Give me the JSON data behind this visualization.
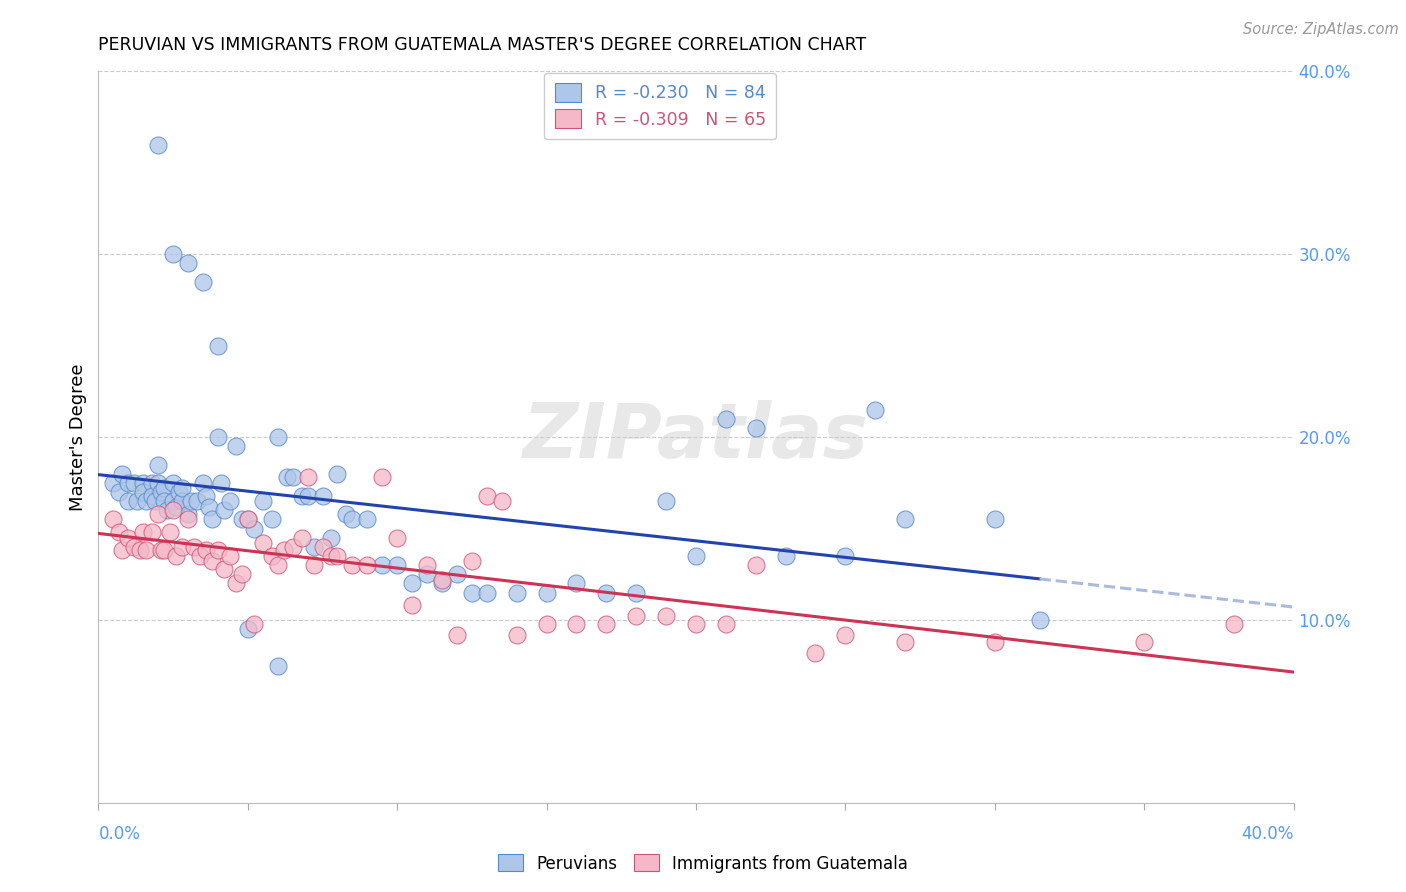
{
  "title": "PERUVIAN VS IMMIGRANTS FROM GUATEMALA MASTER'S DEGREE CORRELATION CHART",
  "source": "Source: ZipAtlas.com",
  "ylabel": "Master's Degree",
  "legend_label1": "Peruvians",
  "legend_label2": "Immigrants from Guatemala",
  "r1": -0.23,
  "n1": 84,
  "r2": -0.309,
  "n2": 65,
  "xlim": [
    0.0,
    0.4
  ],
  "ylim": [
    0.0,
    0.4
  ],
  "color_blue": "#aec6e8",
  "color_pink": "#f4b8c8",
  "color_blue_edge": "#5588cc",
  "color_pink_edge": "#cc5577",
  "line_blue": "#2244aa",
  "line_pink": "#cc3355",
  "line_dash": "#aabbdd",
  "grid_color": "#cccccc",
  "background": "#ffffff",
  "blue_x": [
    0.005,
    0.007,
    0.008,
    0.01,
    0.01,
    0.012,
    0.013,
    0.015,
    0.015,
    0.016,
    0.018,
    0.018,
    0.019,
    0.02,
    0.02,
    0.021,
    0.022,
    0.022,
    0.023,
    0.025,
    0.025,
    0.026,
    0.027,
    0.028,
    0.028,
    0.03,
    0.031,
    0.033,
    0.035,
    0.036,
    0.037,
    0.038,
    0.04,
    0.041,
    0.042,
    0.044,
    0.046,
    0.048,
    0.05,
    0.052,
    0.055,
    0.058,
    0.06,
    0.063,
    0.065,
    0.068,
    0.07,
    0.072,
    0.075,
    0.078,
    0.08,
    0.083,
    0.085,
    0.09,
    0.095,
    0.1,
    0.105,
    0.11,
    0.115,
    0.12,
    0.125,
    0.13,
    0.14,
    0.15,
    0.16,
    0.17,
    0.18,
    0.19,
    0.2,
    0.21,
    0.22,
    0.23,
    0.25,
    0.26,
    0.27,
    0.3,
    0.315,
    0.02,
    0.025,
    0.03,
    0.035,
    0.04,
    0.05,
    0.06
  ],
  "blue_y": [
    0.175,
    0.17,
    0.18,
    0.175,
    0.165,
    0.175,
    0.165,
    0.175,
    0.17,
    0.165,
    0.175,
    0.168,
    0.165,
    0.175,
    0.185,
    0.17,
    0.172,
    0.165,
    0.16,
    0.175,
    0.165,
    0.162,
    0.17,
    0.165,
    0.172,
    0.158,
    0.165,
    0.165,
    0.175,
    0.168,
    0.162,
    0.155,
    0.2,
    0.175,
    0.16,
    0.165,
    0.195,
    0.155,
    0.155,
    0.15,
    0.165,
    0.155,
    0.2,
    0.178,
    0.178,
    0.168,
    0.168,
    0.14,
    0.168,
    0.145,
    0.18,
    0.158,
    0.155,
    0.155,
    0.13,
    0.13,
    0.12,
    0.125,
    0.12,
    0.125,
    0.115,
    0.115,
    0.115,
    0.115,
    0.12,
    0.115,
    0.115,
    0.165,
    0.135,
    0.21,
    0.205,
    0.135,
    0.135,
    0.215,
    0.155,
    0.155,
    0.1,
    0.36,
    0.3,
    0.295,
    0.285,
    0.25,
    0.095,
    0.075
  ],
  "pink_x": [
    0.005,
    0.007,
    0.008,
    0.01,
    0.012,
    0.014,
    0.015,
    0.016,
    0.018,
    0.02,
    0.021,
    0.022,
    0.024,
    0.025,
    0.026,
    0.028,
    0.03,
    0.032,
    0.034,
    0.036,
    0.038,
    0.04,
    0.042,
    0.044,
    0.046,
    0.048,
    0.05,
    0.052,
    0.055,
    0.058,
    0.06,
    0.062,
    0.065,
    0.068,
    0.07,
    0.072,
    0.075,
    0.078,
    0.08,
    0.085,
    0.09,
    0.095,
    0.1,
    0.105,
    0.11,
    0.115,
    0.12,
    0.125,
    0.13,
    0.135,
    0.14,
    0.15,
    0.16,
    0.17,
    0.18,
    0.19,
    0.2,
    0.21,
    0.22,
    0.24,
    0.25,
    0.27,
    0.3,
    0.35,
    0.38
  ],
  "pink_y": [
    0.155,
    0.148,
    0.138,
    0.145,
    0.14,
    0.138,
    0.148,
    0.138,
    0.148,
    0.158,
    0.138,
    0.138,
    0.148,
    0.16,
    0.135,
    0.14,
    0.155,
    0.14,
    0.135,
    0.138,
    0.132,
    0.138,
    0.128,
    0.135,
    0.12,
    0.125,
    0.155,
    0.098,
    0.142,
    0.135,
    0.13,
    0.138,
    0.14,
    0.145,
    0.178,
    0.13,
    0.14,
    0.135,
    0.135,
    0.13,
    0.13,
    0.178,
    0.145,
    0.108,
    0.13,
    0.122,
    0.092,
    0.132,
    0.168,
    0.165,
    0.092,
    0.098,
    0.098,
    0.098,
    0.102,
    0.102,
    0.098,
    0.098,
    0.13,
    0.082,
    0.092,
    0.088,
    0.088,
    0.088,
    0.098
  ]
}
